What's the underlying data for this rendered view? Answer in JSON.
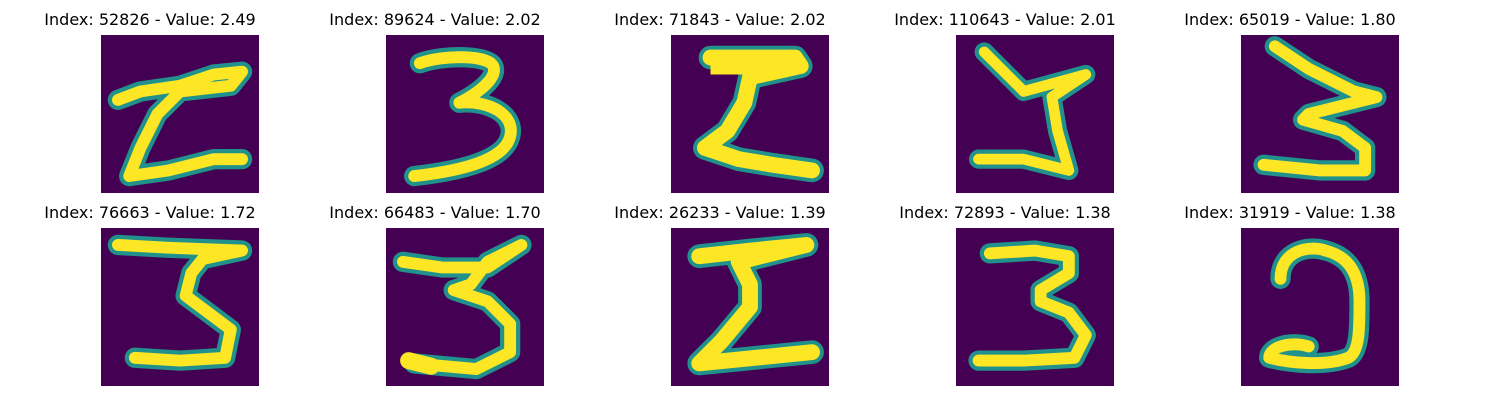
{
  "panels": [
    {
      "title": "Index: 52826 - Value: 2.49",
      "digit": "sigma-like-2",
      "colors": {
        "background": "#440154",
        "stroke": "#fde725"
      }
    },
    {
      "title": "Index: 89624 - Value: 2.02",
      "digit": "3"
    },
    {
      "title": "Index: 71843 - Value: 2.02",
      "digit": "sigma-shape"
    },
    {
      "title": "Index: 110643 - Value: 2.01",
      "digit": "z-reversed"
    },
    {
      "title": "Index: 65019 - Value: 1.80",
      "digit": "3-like-zigzag"
    },
    {
      "title": "Index: 76663 - Value: 1.72",
      "digit": "3"
    },
    {
      "title": "Index: 66483 - Value: 1.70",
      "digit": "3"
    },
    {
      "title": "Index: 26233 - Value: 1.39",
      "digit": "sigma-shape"
    },
    {
      "title": "Index: 72893 - Value: 1.38",
      "digit": "3"
    },
    {
      "title": "Index: 31919 - Value: 1.38",
      "digit": "open-loop"
    }
  ]
}
